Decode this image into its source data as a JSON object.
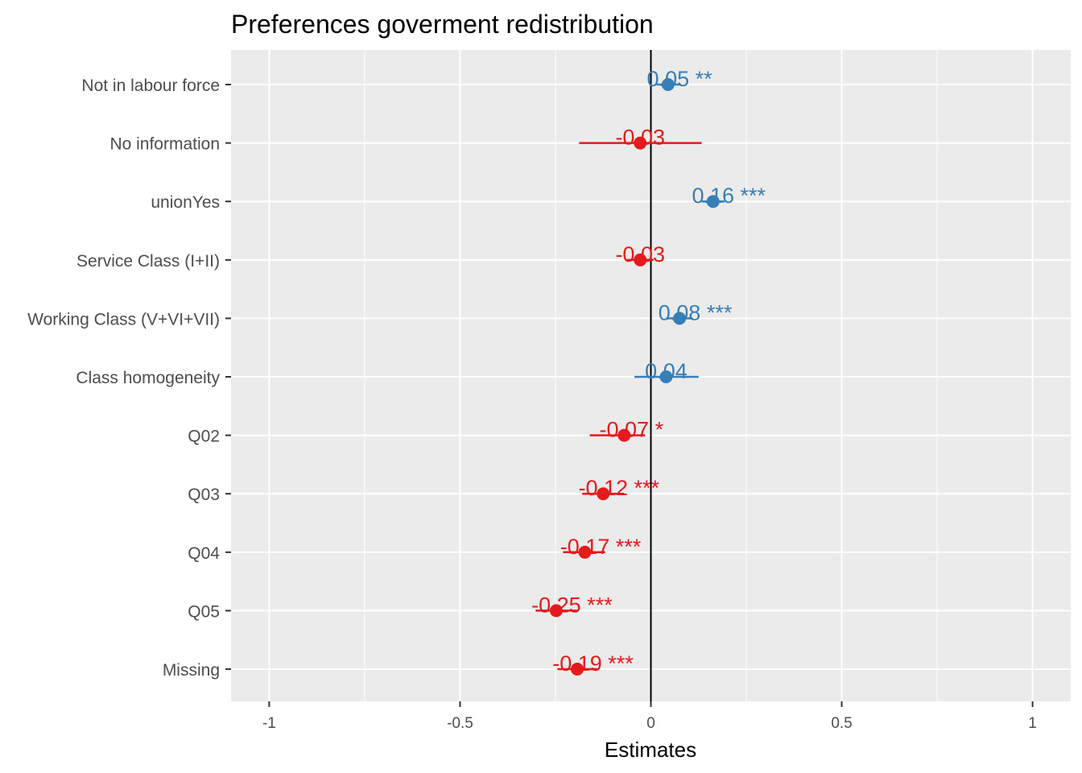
{
  "chart_data": {
    "type": "scatter",
    "title": "Preferences goverment redistribution",
    "xlabel": "Estimates",
    "ylabel": "",
    "xlim": [
      -1.1,
      1.1
    ],
    "xticks": [
      -1,
      -0.5,
      0,
      0.5,
      1
    ],
    "xtick_labels": [
      "-1",
      "-0.5",
      "0",
      "0.5",
      "1"
    ],
    "reference_line": 0,
    "grid": true,
    "colors": {
      "positive": "#377eb8",
      "negative": "#e41a1c",
      "panel": "#ebebeb",
      "grid": "#ffffff"
    },
    "terms": [
      {
        "label": "Not in labour force",
        "estimate": 0.045,
        "ci": [
          0.015,
          0.075
        ],
        "text": "0.05 **",
        "sign": "positive"
      },
      {
        "label": "No information",
        "estimate": -0.028,
        "ci": [
          -0.188,
          0.133
        ],
        "text": "-0.03",
        "sign": "negative"
      },
      {
        "label": "unionYes",
        "estimate": 0.163,
        "ci": [
          0.133,
          0.193
        ],
        "text": "0.16 ***",
        "sign": "positive"
      },
      {
        "label": "Service Class (I+II)",
        "estimate": -0.028,
        "ci": [
          -0.063,
          0.007
        ],
        "text": "-0.03",
        "sign": "negative"
      },
      {
        "label": "Working Class (V+VI+VII)",
        "estimate": 0.075,
        "ci": [
          0.04,
          0.11
        ],
        "text": "0.08 ***",
        "sign": "positive"
      },
      {
        "label": "Class homogeneity",
        "estimate": 0.04,
        "ci": [
          -0.043,
          0.125
        ],
        "text": "0.04",
        "sign": "positive"
      },
      {
        "label": "Q02",
        "estimate": -0.07,
        "ci": [
          -0.16,
          -0.015
        ],
        "text": "-0.07 *",
        "sign": "negative"
      },
      {
        "label": "Q03",
        "estimate": -0.125,
        "ci": [
          -0.18,
          -0.07
        ],
        "text": "-0.12 ***",
        "sign": "negative"
      },
      {
        "label": "Q04",
        "estimate": -0.173,
        "ci": [
          -0.23,
          -0.12
        ],
        "text": "-0.17 ***",
        "sign": "negative"
      },
      {
        "label": "Q05",
        "estimate": -0.248,
        "ci": [
          -0.302,
          -0.193
        ],
        "text": "-0.25 ***",
        "sign": "negative"
      },
      {
        "label": "Missing",
        "estimate": -0.193,
        "ci": [
          -0.245,
          -0.14
        ],
        "text": "-0.19 ***",
        "sign": "negative"
      }
    ]
  }
}
